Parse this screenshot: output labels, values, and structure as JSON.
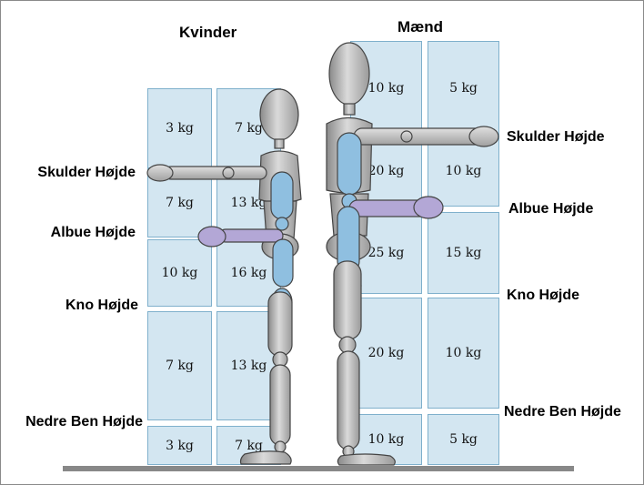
{
  "headers": {
    "women": "Kvinder",
    "men": "Mænd"
  },
  "women_labels": {
    "shoulder": "Skulder Højde",
    "elbow": "Albue Højde",
    "knuckle": "Kno Højde",
    "lower_leg": "Nedre Ben Højde"
  },
  "men_labels": {
    "shoulder": "Skulder Højde",
    "elbow": "Albue Højde",
    "knuckle": "Kno Højde",
    "lower_leg": "Nedre Ben Højde"
  },
  "women_grid": {
    "left": [
      "3 kg",
      "7 kg",
      "10 kg",
      "7 kg",
      "3 kg"
    ],
    "right": [
      "7 kg",
      "13 kg",
      "16 kg",
      "13 kg",
      "7 kg"
    ]
  },
  "men_grid": {
    "left": [
      "10 kg",
      "20 kg",
      "25 kg",
      "20 kg",
      "10 kg"
    ],
    "right": [
      "5 kg",
      "10 kg",
      "15 kg",
      "10 kg",
      "5 kg"
    ]
  },
  "colors": {
    "cell_fill": "#d3e6f1",
    "cell_border": "#7fb0cc",
    "mannequin": "#bfbfbf",
    "highlight_blue": "#8fbfe0",
    "highlight_purple": "#b3a7d6",
    "floor": "#888888"
  }
}
